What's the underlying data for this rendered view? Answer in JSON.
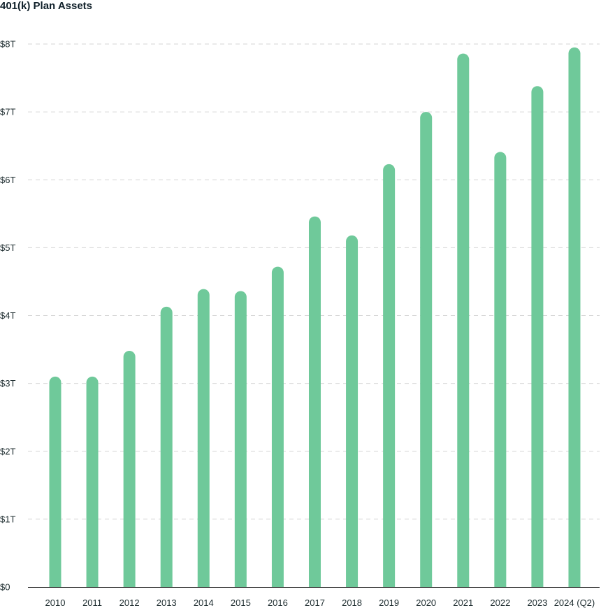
{
  "chart_data": {
    "type": "bar",
    "title": "401(k) Plan Assets",
    "xlabel": "",
    "ylabel": "",
    "categories": [
      "2010",
      "2011",
      "2012",
      "2013",
      "2014",
      "2015",
      "2016",
      "2017",
      "2018",
      "2019",
      "2020",
      "2021",
      "2022",
      "2023",
      "2024 (Q2)"
    ],
    "values": [
      3.1,
      3.1,
      3.48,
      4.13,
      4.39,
      4.36,
      4.72,
      5.46,
      5.18,
      6.23,
      7.0,
      7.86,
      6.41,
      7.38,
      7.95
    ],
    "ylim": [
      0,
      8
    ],
    "yticks": [
      0,
      1,
      2,
      3,
      4,
      5,
      6,
      7,
      8
    ],
    "ytick_labels": [
      "$0",
      "$1T",
      "$2T",
      "$3T",
      "$4T",
      "$5T",
      "$6T",
      "$7T",
      "$8T"
    ],
    "grid": true,
    "legend": "none",
    "colors": {
      "bar": "#6fc99a",
      "grid": "#d6d6d6",
      "axis": "#2b2b2b"
    }
  }
}
